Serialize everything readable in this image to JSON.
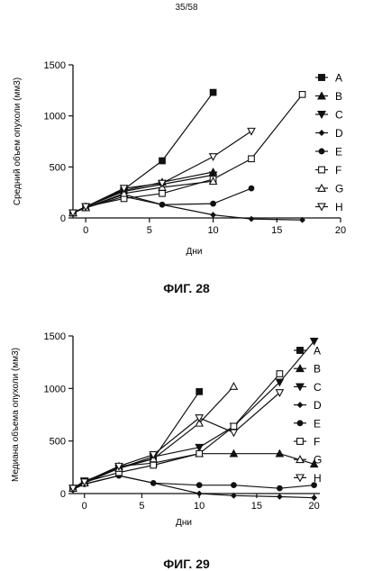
{
  "page_number": "35/58",
  "figures": [
    {
      "caption": "ФИГ. 28"
    },
    {
      "caption": "ФИГ. 29"
    }
  ],
  "chart_data": [
    {
      "type": "line",
      "title": "",
      "xlabel": "Дни",
      "ylabel": "Средний объем опухоли (мм3)",
      "xlim": [
        -1,
        20
      ],
      "ylim": [
        0,
        1500
      ],
      "xticks": [
        0,
        5,
        10,
        15,
        20
      ],
      "yticks": [
        0,
        500,
        1000,
        1500
      ],
      "legend_position": "right",
      "series": [
        {
          "name": "A",
          "marker": "square-filled",
          "x": [
            -1,
            0,
            3,
            6,
            10
          ],
          "y": [
            50,
            110,
            280,
            560,
            1230
          ]
        },
        {
          "name": "B",
          "marker": "triangle-up-filled",
          "x": [
            -1,
            0,
            3,
            6,
            10
          ],
          "y": [
            50,
            110,
            270,
            350,
            450
          ]
        },
        {
          "name": "C",
          "marker": "triangle-down-filled",
          "x": [
            -1,
            0,
            3,
            6,
            10
          ],
          "y": [
            50,
            110,
            260,
            330,
            420
          ]
        },
        {
          "name": "D",
          "marker": "diamond-filled",
          "x": [
            -1,
            0,
            3,
            6,
            10,
            13,
            17
          ],
          "y": [
            50,
            100,
            230,
            130,
            30,
            -10,
            -20
          ]
        },
        {
          "name": "E",
          "marker": "circle-filled",
          "x": [
            -1,
            0,
            3,
            6,
            10,
            13
          ],
          "y": [
            50,
            100,
            210,
            130,
            140,
            290
          ]
        },
        {
          "name": "F",
          "marker": "square-open",
          "x": [
            -1,
            0,
            3,
            6,
            10,
            13,
            17
          ],
          "y": [
            50,
            110,
            190,
            240,
            380,
            580,
            1210
          ]
        },
        {
          "name": "G",
          "marker": "triangle-up-open",
          "x": [
            -1,
            0,
            3,
            6,
            10
          ],
          "y": [
            50,
            100,
            240,
            300,
            360
          ]
        },
        {
          "name": "H",
          "marker": "triangle-down-open",
          "x": [
            -1,
            0,
            3,
            6,
            10,
            13
          ],
          "y": [
            50,
            110,
            290,
            340,
            600,
            850
          ]
        }
      ]
    },
    {
      "type": "line",
      "title": "",
      "xlabel": "Дни",
      "ylabel": "Медиана объема опухоли (мм3)",
      "xlim": [
        -1,
        20.5
      ],
      "ylim": [
        0,
        1500
      ],
      "xticks": [
        0,
        5,
        10,
        15,
        20
      ],
      "yticks": [
        0,
        500,
        1000,
        1500
      ],
      "legend_position": "right",
      "series": [
        {
          "name": "A",
          "marker": "square-filled",
          "x": [
            -1,
            0,
            3,
            6,
            10
          ],
          "y": [
            50,
            110,
            250,
            330,
            970
          ]
        },
        {
          "name": "B",
          "marker": "triangle-up-filled",
          "x": [
            -1,
            0,
            3,
            6,
            10,
            13,
            17,
            20
          ],
          "y": [
            50,
            110,
            260,
            290,
            380,
            380,
            380,
            280
          ]
        },
        {
          "name": "C",
          "marker": "triangle-down-filled",
          "x": [
            -1,
            0,
            3,
            6,
            10,
            13,
            17,
            20
          ],
          "y": [
            50,
            120,
            240,
            350,
            440,
            640,
            1060,
            1450
          ]
        },
        {
          "name": "D",
          "marker": "diamond-filled",
          "x": [
            -1,
            0,
            3,
            6,
            10,
            13,
            17,
            20
          ],
          "y": [
            40,
            90,
            170,
            100,
            0,
            -20,
            -30,
            -40
          ]
        },
        {
          "name": "E",
          "marker": "circle-filled",
          "x": [
            -1,
            0,
            3,
            6,
            10,
            13,
            17,
            20
          ],
          "y": [
            40,
            90,
            170,
            100,
            80,
            80,
            50,
            80
          ]
        },
        {
          "name": "F",
          "marker": "square-open",
          "x": [
            -1,
            0,
            3,
            6,
            10,
            13,
            17
          ],
          "y": [
            50,
            110,
            200,
            270,
            380,
            640,
            1140
          ]
        },
        {
          "name": "G",
          "marker": "triangle-up-open",
          "x": [
            -1,
            0,
            3,
            6,
            10,
            13
          ],
          "y": [
            50,
            100,
            240,
            330,
            670,
            1020
          ]
        },
        {
          "name": "H",
          "marker": "triangle-down-open",
          "x": [
            -1,
            0,
            3,
            6,
            10,
            13,
            17
          ],
          "y": [
            50,
            110,
            260,
            370,
            720,
            580,
            960
          ]
        }
      ]
    }
  ]
}
